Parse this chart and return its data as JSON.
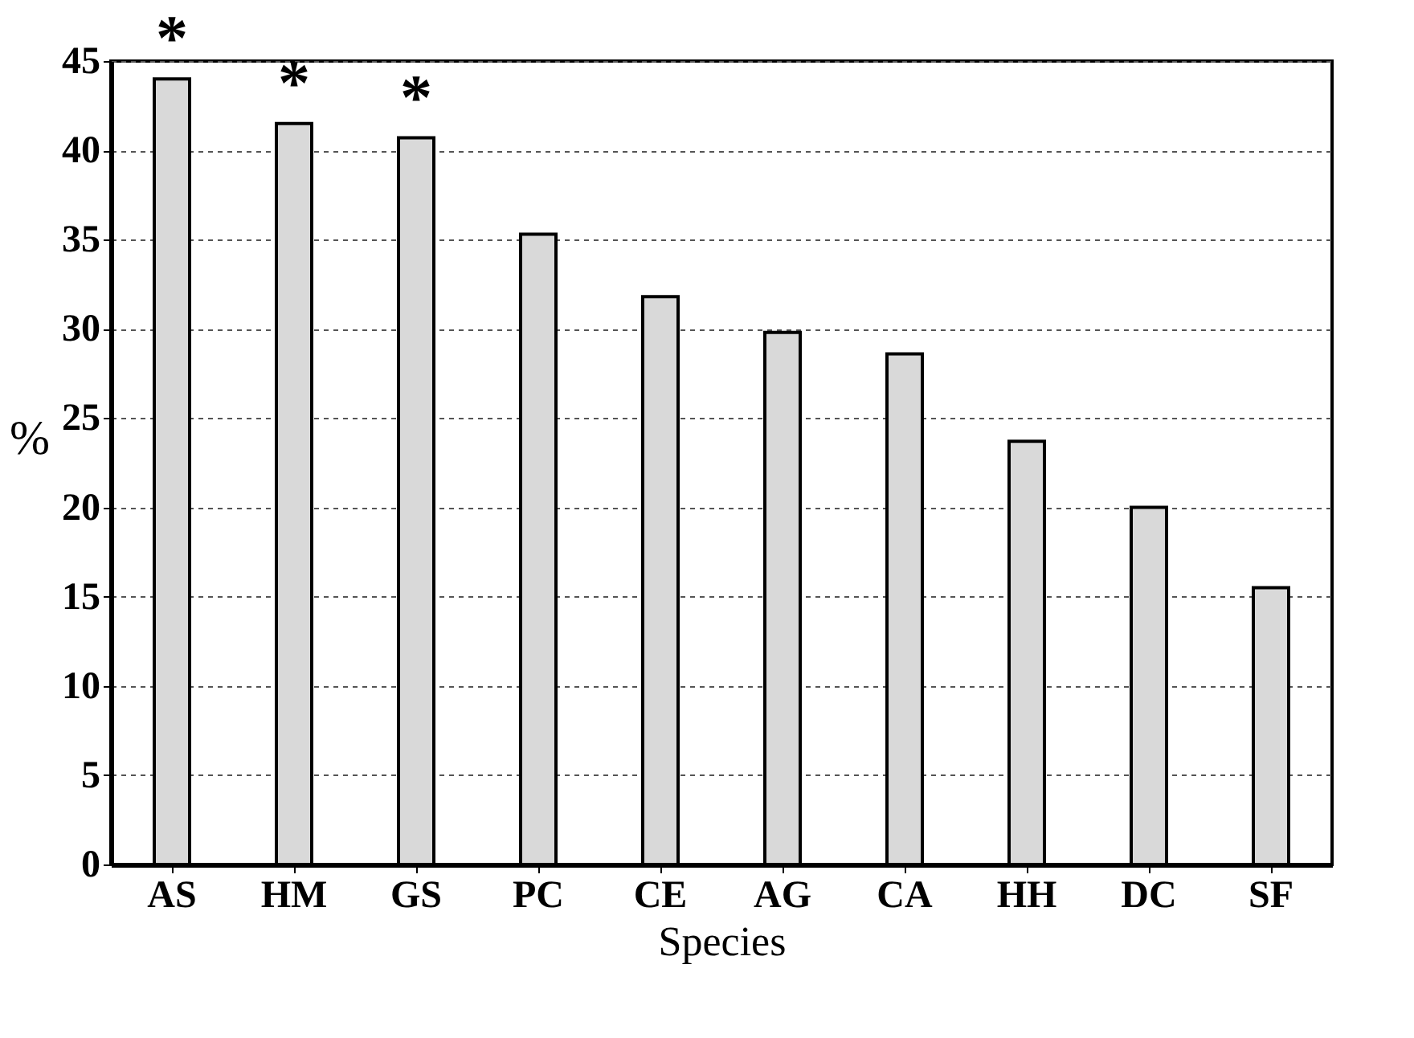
{
  "chart_data": {
    "type": "bar",
    "xlabel": "Species",
    "ylabel": "%",
    "categories": [
      "AS",
      "HM",
      "GS",
      "PC",
      "CE",
      "AG",
      "CA",
      "HH",
      "DC",
      "SF"
    ],
    "values": [
      44,
      41.5,
      40.7,
      35.3,
      31.8,
      29.8,
      28.6,
      23.7,
      20,
      15.5
    ],
    "color": "#d9d9d9",
    "ylim": [
      0,
      45
    ],
    "yticks": [
      0,
      5,
      10,
      15,
      20,
      25,
      30,
      35,
      40,
      45
    ],
    "grid": "y",
    "annotations": [
      {
        "text": "*",
        "x": "AS",
        "y": 44
      },
      {
        "text": "*",
        "x": "HM",
        "y": 41.5
      },
      {
        "text": "*",
        "x": "GS",
        "y": 40.7
      }
    ]
  }
}
